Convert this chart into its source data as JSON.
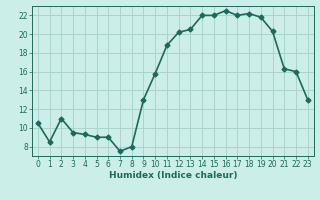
{
  "x": [
    0,
    1,
    2,
    3,
    4,
    5,
    6,
    7,
    8,
    9,
    10,
    11,
    12,
    13,
    14,
    15,
    16,
    17,
    18,
    19,
    20,
    21,
    22,
    23
  ],
  "y": [
    10.5,
    8.5,
    11.0,
    9.5,
    9.3,
    9.0,
    9.0,
    7.5,
    8.0,
    13.0,
    15.8,
    18.8,
    20.2,
    20.5,
    22.0,
    22.0,
    22.5,
    22.0,
    22.2,
    21.8,
    20.3,
    16.3,
    16.0,
    13.0
  ],
  "line_color": "#1a6b5a",
  "marker": "D",
  "marker_size": 2.5,
  "bg_color": "#cceee8",
  "grid_color": "#aad4cc",
  "xlabel": "Humidex (Indice chaleur)",
  "xlim": [
    -0.5,
    23.5
  ],
  "ylim": [
    7,
    23
  ],
  "yticks": [
    8,
    10,
    12,
    14,
    16,
    18,
    20,
    22
  ],
  "xticks": [
    0,
    1,
    2,
    3,
    4,
    5,
    6,
    7,
    8,
    9,
    10,
    11,
    12,
    13,
    14,
    15,
    16,
    17,
    18,
    19,
    20,
    21,
    22,
    23
  ],
  "xtick_labels": [
    "0",
    "1",
    "2",
    "3",
    "4",
    "5",
    "6",
    "7",
    "8",
    "9",
    "10",
    "11",
    "12",
    "13",
    "14",
    "15",
    "16",
    "17",
    "18",
    "19",
    "20",
    "21",
    "22",
    "23"
  ],
  "line_width": 1.2
}
